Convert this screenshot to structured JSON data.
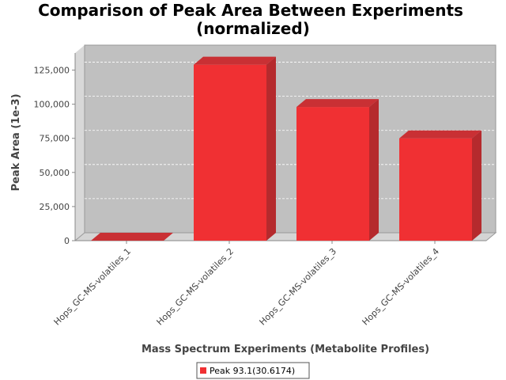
{
  "chart_data": {
    "type": "bar",
    "title_lines": [
      "Comparison of Peak Area Between Experiments",
      "(normalized)"
    ],
    "xlabel": "Mass Spectrum Experiments (Metabolite Profiles)",
    "ylabel": "Peak Area (1e-3)",
    "categories": [
      "Hops_GC-MS-volatiles_1",
      "Hops_GC-MS-volatiles_2",
      "Hops_GC-MS-volatiles_3",
      "Hops_GC-MS-volatiles_4"
    ],
    "series": [
      {
        "name": "Peak 93.1(30.6174)",
        "values": [
          0,
          129000,
          98000,
          75000
        ]
      }
    ],
    "ylim": [
      0,
      137500
    ],
    "yticks": [
      0,
      25000,
      50000,
      75000,
      100000,
      125000
    ],
    "ytick_labels": [
      "0",
      "25,000",
      "50,000",
      "75,000",
      "100,000",
      "125,000"
    ],
    "grid": true,
    "legend_position": "bottom",
    "colors": {
      "bar_front": "#f03033",
      "bar_top": "#c93034",
      "bar_side": "#b52a2d",
      "plot_back": "#c0c0c0",
      "plot_wall": "#d8d8d8",
      "plot_floor": "#d4d4d4"
    }
  }
}
